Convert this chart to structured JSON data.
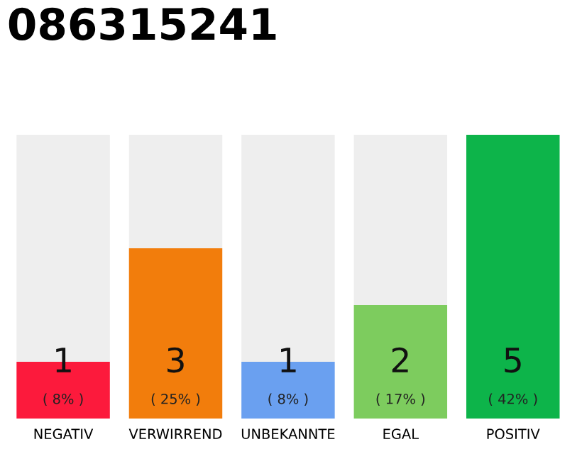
{
  "chart_data": {
    "type": "bar",
    "title": "086315241",
    "categories": [
      "NEGATIV",
      "VERWIRREND",
      "UNBEKANNTE",
      "EGAL",
      "POSITIV"
    ],
    "stacked": true,
    "ylim": [
      0,
      5
    ],
    "tick_labels": "x",
    "series": [
      {
        "colors": [
          "#fc1a3c",
          "#f27d0c",
          "#6aa0f0",
          "#7dcc5e",
          "#0db44a"
        ],
        "values": [
          1,
          3,
          1,
          2,
          5
        ],
        "value_labels": [
          "1",
          "3",
          "1",
          "2",
          "5"
        ]
      },
      {
        "color": "#eeeeee",
        "values": [
          4,
          2,
          4,
          3,
          0
        ]
      }
    ],
    "annotations": [
      "( 8% )",
      "( 25% )",
      "( 8% )",
      "( 17% )",
      "( 42% )"
    ]
  }
}
